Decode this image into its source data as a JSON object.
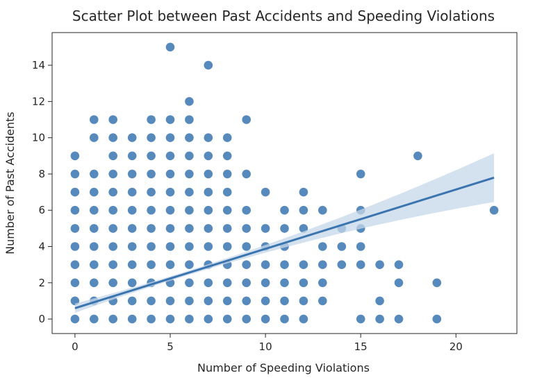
{
  "chart_data": {
    "type": "scatter",
    "title": "Scatter Plot between Past Accidents and Speeding Violations",
    "xlabel": "Number of Speeding Violations",
    "ylabel": "Number of Past Accidents",
    "xlim": [
      -1.2,
      23.2
    ],
    "ylim": [
      -0.8,
      15.8
    ],
    "xticks": [
      0,
      5,
      10,
      15,
      20
    ],
    "yticks": [
      0,
      2,
      4,
      6,
      8,
      10,
      12,
      14
    ],
    "grid": false,
    "legend": "none",
    "point_color": "#3a75b0",
    "line_color": "#3a75b0",
    "band_color": "#c6d7ea",
    "regression": {
      "x": [
        0,
        22
      ],
      "y": [
        0.6,
        7.8
      ]
    },
    "points": [
      [
        0,
        0
      ],
      [
        0,
        1
      ],
      [
        0,
        2
      ],
      [
        0,
        3
      ],
      [
        0,
        4
      ],
      [
        0,
        5
      ],
      [
        0,
        6
      ],
      [
        0,
        7
      ],
      [
        0,
        8
      ],
      [
        0,
        9
      ],
      [
        1,
        0
      ],
      [
        1,
        1
      ],
      [
        1,
        2
      ],
      [
        1,
        3
      ],
      [
        1,
        4
      ],
      [
        1,
        5
      ],
      [
        1,
        6
      ],
      [
        1,
        7
      ],
      [
        1,
        8
      ],
      [
        1,
        10
      ],
      [
        1,
        11
      ],
      [
        2,
        0
      ],
      [
        2,
        1
      ],
      [
        2,
        2
      ],
      [
        2,
        3
      ],
      [
        2,
        4
      ],
      [
        2,
        5
      ],
      [
        2,
        6
      ],
      [
        2,
        7
      ],
      [
        2,
        8
      ],
      [
        2,
        9
      ],
      [
        2,
        10
      ],
      [
        2,
        11
      ],
      [
        3,
        0
      ],
      [
        3,
        1
      ],
      [
        3,
        2
      ],
      [
        3,
        3
      ],
      [
        3,
        4
      ],
      [
        3,
        5
      ],
      [
        3,
        6
      ],
      [
        3,
        7
      ],
      [
        3,
        8
      ],
      [
        3,
        9
      ],
      [
        3,
        10
      ],
      [
        4,
        0
      ],
      [
        4,
        1
      ],
      [
        4,
        2
      ],
      [
        4,
        3
      ],
      [
        4,
        4
      ],
      [
        4,
        5
      ],
      [
        4,
        6
      ],
      [
        4,
        7
      ],
      [
        4,
        8
      ],
      [
        4,
        9
      ],
      [
        4,
        10
      ],
      [
        4,
        11
      ],
      [
        5,
        0
      ],
      [
        5,
        1
      ],
      [
        5,
        2
      ],
      [
        5,
        3
      ],
      [
        5,
        4
      ],
      [
        5,
        5
      ],
      [
        5,
        6
      ],
      [
        5,
        7
      ],
      [
        5,
        8
      ],
      [
        5,
        9
      ],
      [
        5,
        10
      ],
      [
        5,
        11
      ],
      [
        5,
        15
      ],
      [
        6,
        0
      ],
      [
        6,
        1
      ],
      [
        6,
        2
      ],
      [
        6,
        3
      ],
      [
        6,
        4
      ],
      [
        6,
        5
      ],
      [
        6,
        6
      ],
      [
        6,
        7
      ],
      [
        6,
        8
      ],
      [
        6,
        9
      ],
      [
        6,
        10
      ],
      [
        6,
        11
      ],
      [
        6,
        12
      ],
      [
        7,
        0
      ],
      [
        7,
        1
      ],
      [
        7,
        2
      ],
      [
        7,
        3
      ],
      [
        7,
        4
      ],
      [
        7,
        5
      ],
      [
        7,
        6
      ],
      [
        7,
        7
      ],
      [
        7,
        8
      ],
      [
        7,
        9
      ],
      [
        7,
        10
      ],
      [
        7,
        14
      ],
      [
        8,
        0
      ],
      [
        8,
        1
      ],
      [
        8,
        2
      ],
      [
        8,
        3
      ],
      [
        8,
        4
      ],
      [
        8,
        5
      ],
      [
        8,
        6
      ],
      [
        8,
        7
      ],
      [
        8,
        8
      ],
      [
        8,
        9
      ],
      [
        8,
        10
      ],
      [
        9,
        0
      ],
      [
        9,
        1
      ],
      [
        9,
        2
      ],
      [
        9,
        3
      ],
      [
        9,
        4
      ],
      [
        9,
        5
      ],
      [
        9,
        6
      ],
      [
        9,
        8
      ],
      [
        9,
        11
      ],
      [
        10,
        0
      ],
      [
        10,
        1
      ],
      [
        10,
        2
      ],
      [
        10,
        3
      ],
      [
        10,
        4
      ],
      [
        10,
        5
      ],
      [
        10,
        7
      ],
      [
        11,
        0
      ],
      [
        11,
        1
      ],
      [
        11,
        2
      ],
      [
        11,
        3
      ],
      [
        11,
        4
      ],
      [
        11,
        5
      ],
      [
        11,
        6
      ],
      [
        12,
        0
      ],
      [
        12,
        1
      ],
      [
        12,
        2
      ],
      [
        12,
        3
      ],
      [
        12,
        5
      ],
      [
        12,
        6
      ],
      [
        12,
        7
      ],
      [
        13,
        1
      ],
      [
        13,
        2
      ],
      [
        13,
        3
      ],
      [
        13,
        4
      ],
      [
        13,
        6
      ],
      [
        14,
        3
      ],
      [
        14,
        4
      ],
      [
        14,
        5
      ],
      [
        15,
        0
      ],
      [
        15,
        3
      ],
      [
        15,
        4
      ],
      [
        15,
        5
      ],
      [
        15,
        6
      ],
      [
        15,
        8
      ],
      [
        16,
        0
      ],
      [
        16,
        1
      ],
      [
        16,
        3
      ],
      [
        17,
        0
      ],
      [
        17,
        2
      ],
      [
        17,
        3
      ],
      [
        18,
        9
      ],
      [
        19,
        0
      ],
      [
        19,
        2
      ],
      [
        22,
        6
      ]
    ]
  }
}
